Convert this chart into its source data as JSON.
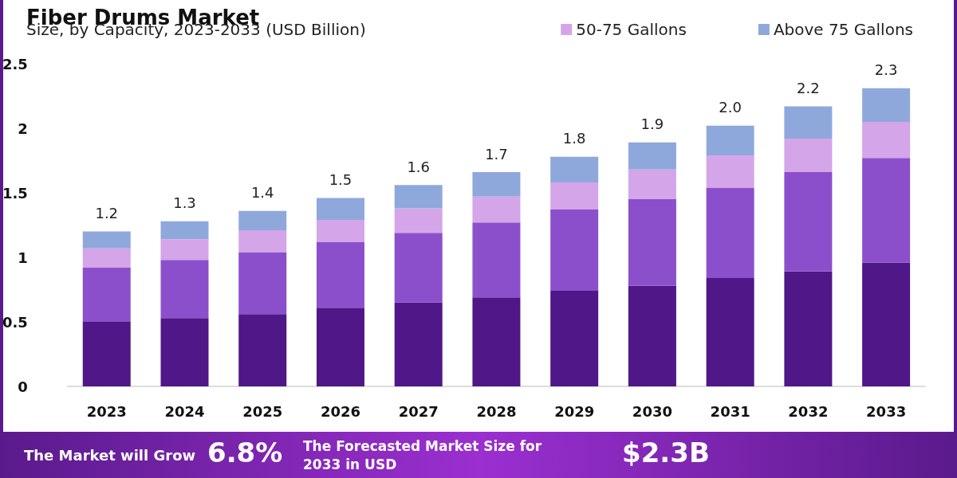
{
  "chart_data": {
    "type": "bar",
    "stacked": true,
    "title": "Fiber Drums Market",
    "subtitle": "Size, by Capacity, 2023-2033 (USD Billion)",
    "categories": [
      "2023",
      "2024",
      "2025",
      "2026",
      "2027",
      "2028",
      "2029",
      "2030",
      "2031",
      "2032",
      "2033"
    ],
    "series": [
      {
        "color": "#4f1787",
        "values": [
          0.5,
          0.53,
          0.56,
          0.61,
          0.65,
          0.69,
          0.74,
          0.78,
          0.84,
          0.89,
          0.96
        ]
      },
      {
        "color": "#8b4fcc",
        "values": [
          0.42,
          0.45,
          0.48,
          0.51,
          0.54,
          0.58,
          0.63,
          0.67,
          0.7,
          0.77,
          0.81
        ]
      },
      {
        "name": "50-75 Gallons",
        "color": "#d4a5e8",
        "values": [
          0.15,
          0.16,
          0.17,
          0.17,
          0.19,
          0.2,
          0.21,
          0.23,
          0.25,
          0.26,
          0.28
        ]
      },
      {
        "name": "Above 75 Gallons",
        "color": "#8fa8dc",
        "values": [
          0.13,
          0.14,
          0.15,
          0.17,
          0.18,
          0.19,
          0.2,
          0.21,
          0.23,
          0.25,
          0.26
        ]
      }
    ],
    "totals": [
      "1.2",
      "1.3",
      "1.4",
      "1.5",
      "1.6",
      "1.7",
      "1.8",
      "1.9",
      "2.0",
      "2.2",
      "2.3"
    ],
    "ylim": [
      0,
      2.5
    ],
    "yticks": [
      0,
      0.5,
      1,
      1.5,
      2,
      2.5
    ],
    "grid": false,
    "legend": "top right",
    "annotations": [
      "The Market will Grow",
      "6.8%",
      "The Forecasted Market Size for 2033 in USD",
      "$2.3B"
    ]
  }
}
